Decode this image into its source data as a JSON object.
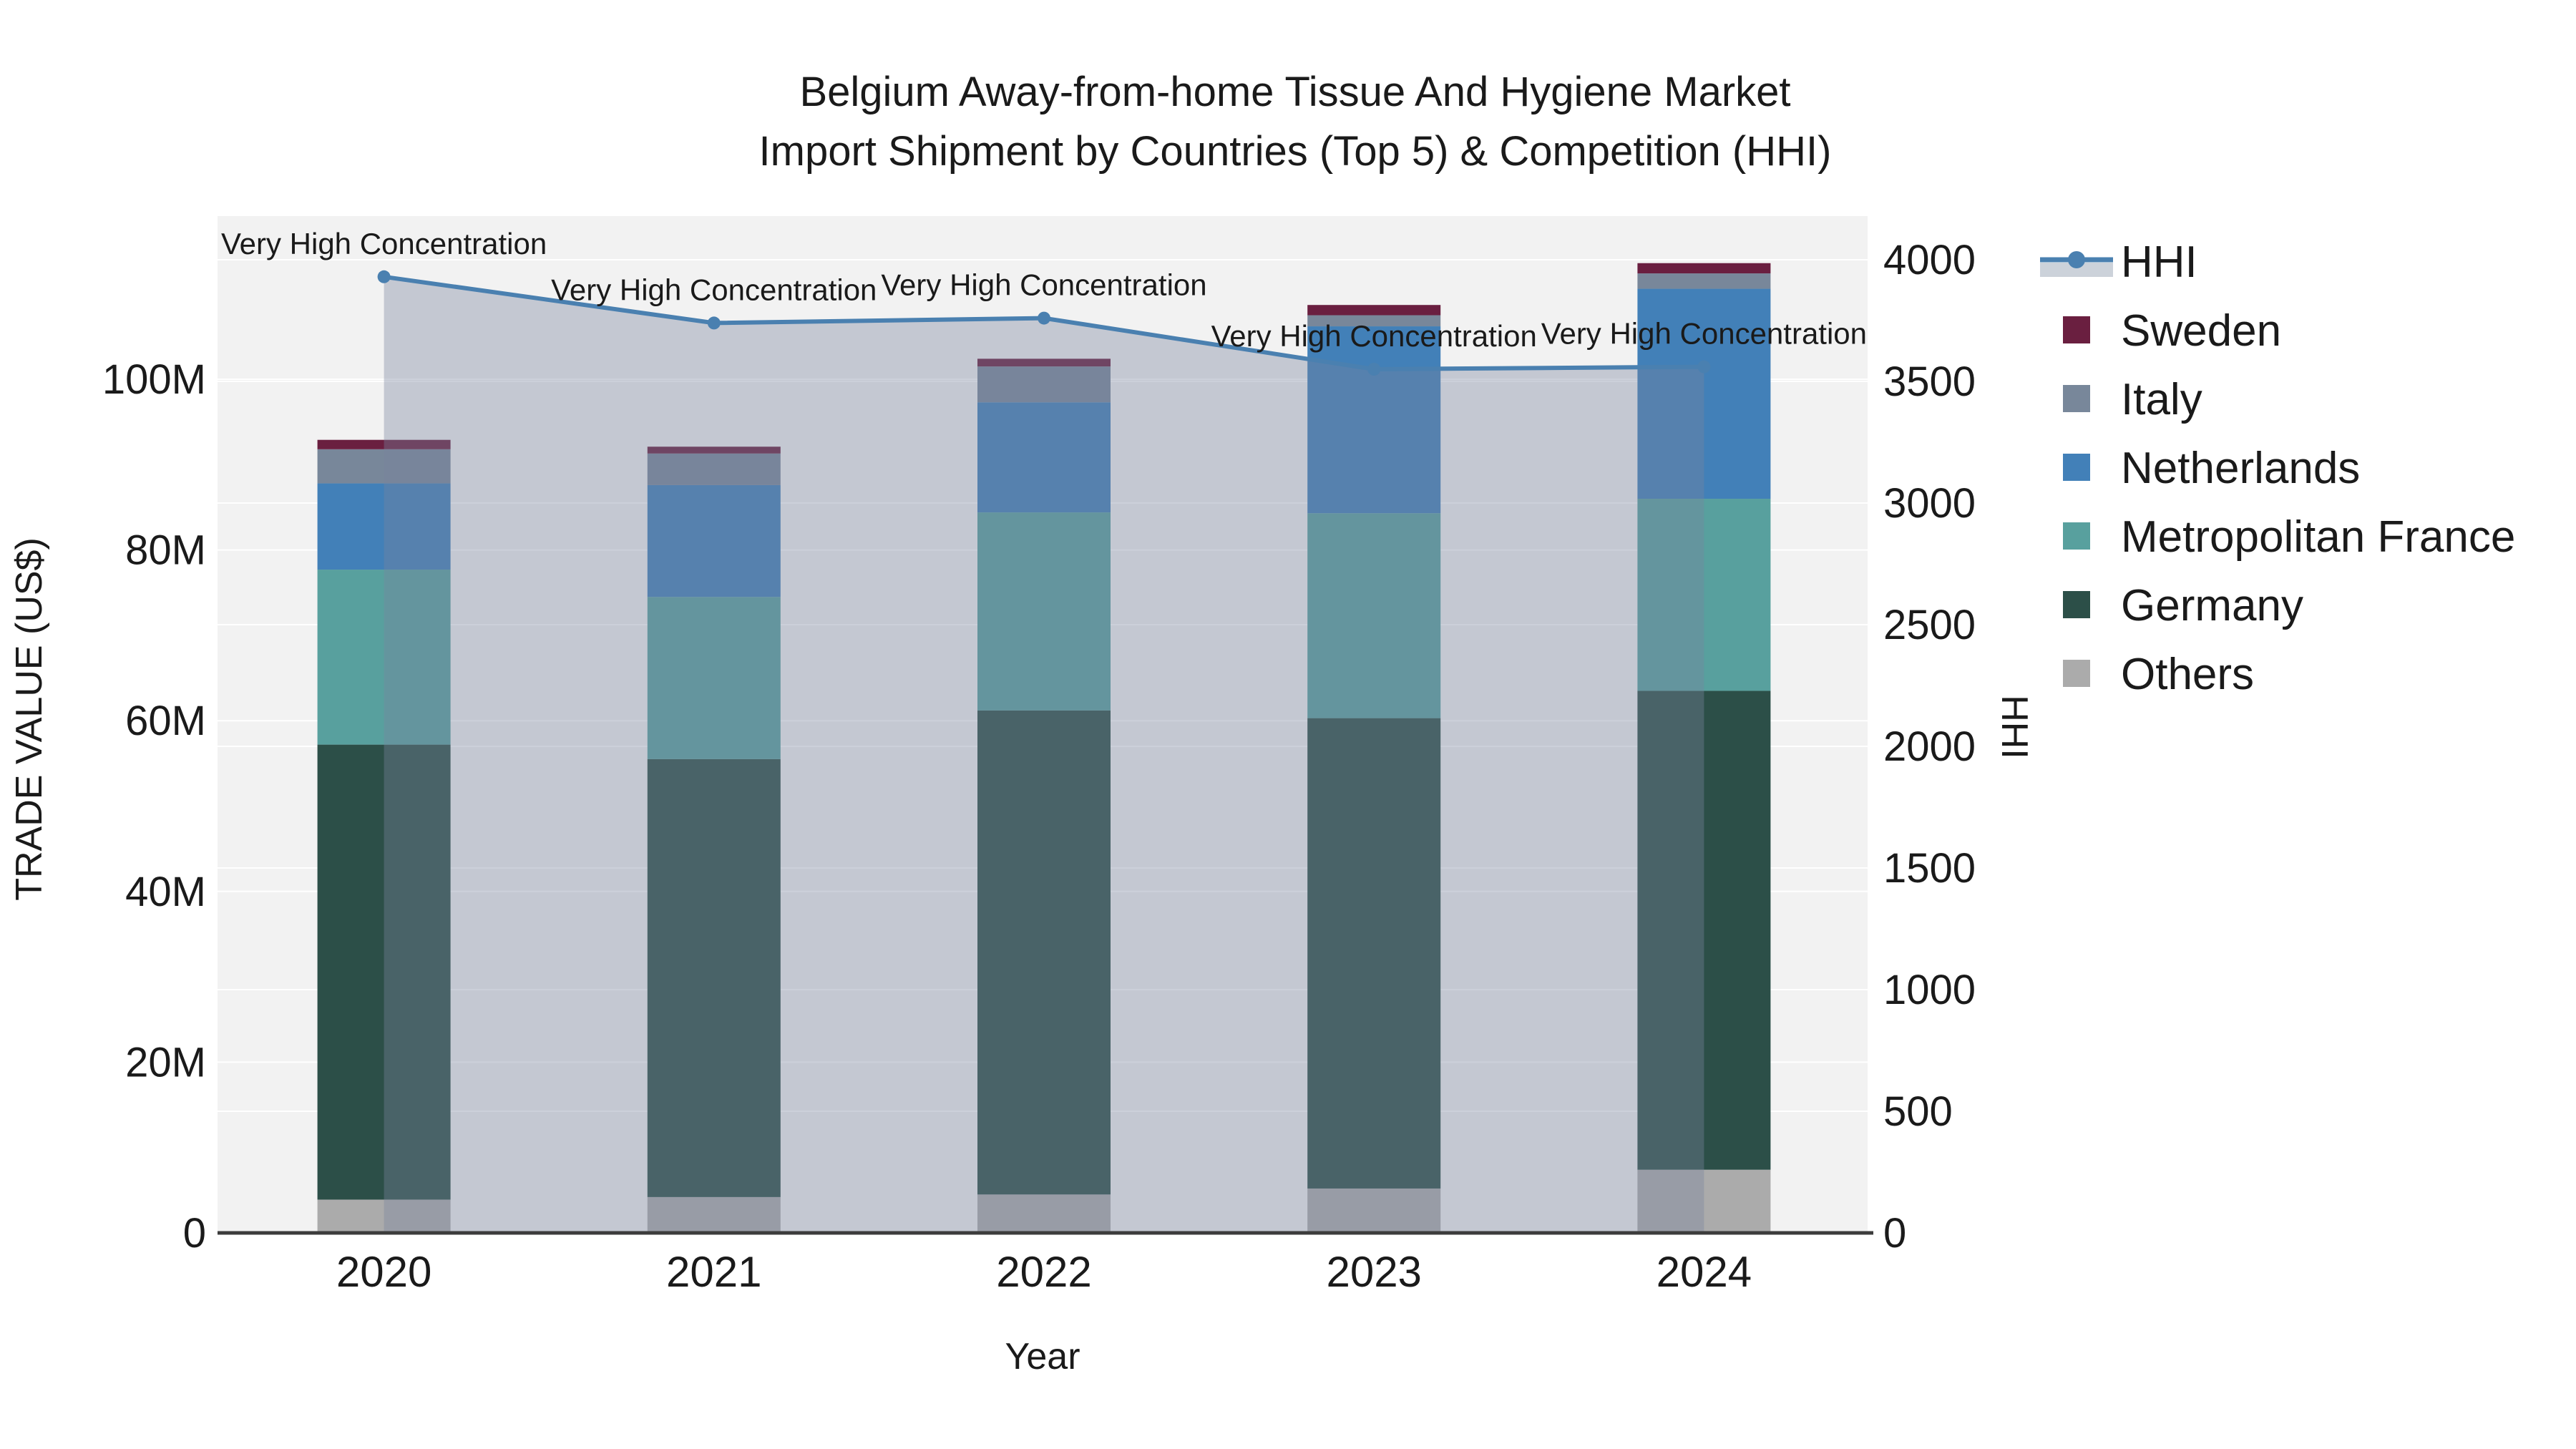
{
  "title": {
    "line1": "Belgium Away-from-home Tissue And Hygiene Market",
    "line2": "Import Shipment by Countries (Top 5) & Competition (HHI)"
  },
  "axes": {
    "y_left": {
      "title": "TRADE VALUE (US$)",
      "tick_labels": [
        "0",
        "20M",
        "40M",
        "60M",
        "80M",
        "100M"
      ],
      "tick_values_musd": [
        0,
        20,
        40,
        60,
        80,
        100
      ]
    },
    "y_right": {
      "title": "HHI",
      "tick_labels": [
        "0",
        "500",
        "1000",
        "1500",
        "2000",
        "2500",
        "3000",
        "3500",
        "4000"
      ],
      "tick_values": [
        0,
        500,
        1000,
        1500,
        2000,
        2500,
        3000,
        3500,
        4000
      ]
    },
    "x": {
      "title": "Year",
      "tick_labels": [
        "2020",
        "2021",
        "2022",
        "2023",
        "2024"
      ]
    }
  },
  "legend": {
    "items": [
      {
        "label": "HHI",
        "type": "line",
        "color": "#4a80b0"
      },
      {
        "label": "Sweden",
        "type": "swatch",
        "color": "#6a1f40"
      },
      {
        "label": "Italy",
        "type": "swatch",
        "color": "#78879a"
      },
      {
        "label": "Netherlands",
        "type": "swatch",
        "color": "#4280b8"
      },
      {
        "label": "Metropolitan France",
        "type": "swatch",
        "color": "#58a09e"
      },
      {
        "label": "Germany",
        "type": "swatch",
        "color": "#2c4f48"
      },
      {
        "label": "Others",
        "type": "swatch",
        "color": "#ababab"
      }
    ]
  },
  "chart_data": {
    "type": "combo-stacked-bar-line",
    "categories": [
      "2020",
      "2021",
      "2022",
      "2023",
      "2024"
    ],
    "unit_bars": "US$ millions (left axis)",
    "unit_line": "HHI index (right axis)",
    "bar_series_bottom_to_top": [
      {
        "name": "Others",
        "color": "#ababab",
        "values": [
          3.9,
          4.2,
          4.5,
          5.2,
          7.4
        ]
      },
      {
        "name": "Germany",
        "color": "#2c4f48",
        "values": [
          53.3,
          51.3,
          56.7,
          55.1,
          56.1
        ]
      },
      {
        "name": "Metropolitan France",
        "color": "#58a09e",
        "values": [
          20.5,
          19.0,
          23.2,
          24.0,
          22.5
        ]
      },
      {
        "name": "Netherlands",
        "color": "#4280b8",
        "values": [
          10.1,
          13.1,
          12.9,
          21.9,
          24.6
        ]
      },
      {
        "name": "Italy",
        "color": "#78879a",
        "values": [
          4.0,
          3.7,
          4.2,
          1.3,
          1.8
        ]
      },
      {
        "name": "Sweden",
        "color": "#6a1f40",
        "values": [
          1.1,
          0.8,
          0.9,
          1.2,
          1.2
        ]
      }
    ],
    "bar_totals_musd": [
      92.9,
      92.1,
      102.4,
      108.7,
      113.6
    ],
    "line_series": {
      "name": "HHI",
      "color": "#4a80b0",
      "area_fill_color": "rgba(120,132,158,0.38)",
      "values": [
        3930,
        3740,
        3760,
        3550,
        3560
      ],
      "point_annotations": [
        "Very High Concentration",
        "Very High Concentration",
        "Very High Concentration",
        "Very High Concentration",
        "Very High Concentration"
      ]
    },
    "y_left_axis_range_musd": [
      0,
      119
    ],
    "y_right_axis_range": [
      0,
      4000
    ],
    "grid": true,
    "legend_position": "right",
    "plot_background": "#f2f2f2",
    "gridline_color": "#ffffff",
    "axis_line_color": "#3c3c3c",
    "legend_hhi_band_color": "#ccd2da"
  }
}
